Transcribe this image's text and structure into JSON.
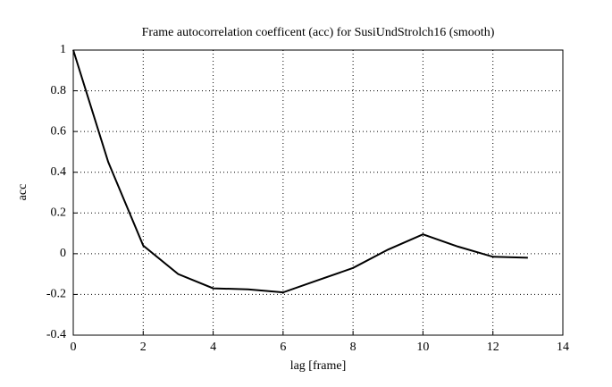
{
  "chart_data": {
    "type": "line",
    "title": "Frame autocorrelation coefficent (acc) for SusiUndStrolch16 (smooth)",
    "xlabel": "lag [frame]",
    "ylabel": "acc",
    "x": [
      0,
      1,
      2,
      3,
      4,
      5,
      6,
      7,
      8,
      9,
      10,
      11,
      12,
      13
    ],
    "series": [
      {
        "color": "#000000",
        "values": [
          1,
          0.45,
          0.04,
          -0.1,
          -0.17,
          -0.175,
          -0.19,
          -0.13,
          -0.07,
          0.02,
          0.095,
          0.035,
          -0.015,
          -0.02
        ]
      }
    ],
    "xlim": [
      0,
      14
    ],
    "xticks": [
      0,
      2,
      4,
      6,
      8,
      10,
      12,
      14
    ],
    "ylim": [
      -0.4,
      1
    ],
    "yticks": [
      -0.4,
      -0.2,
      0,
      0.2,
      0.4,
      0.6,
      0.8,
      1
    ],
    "grid": true
  }
}
